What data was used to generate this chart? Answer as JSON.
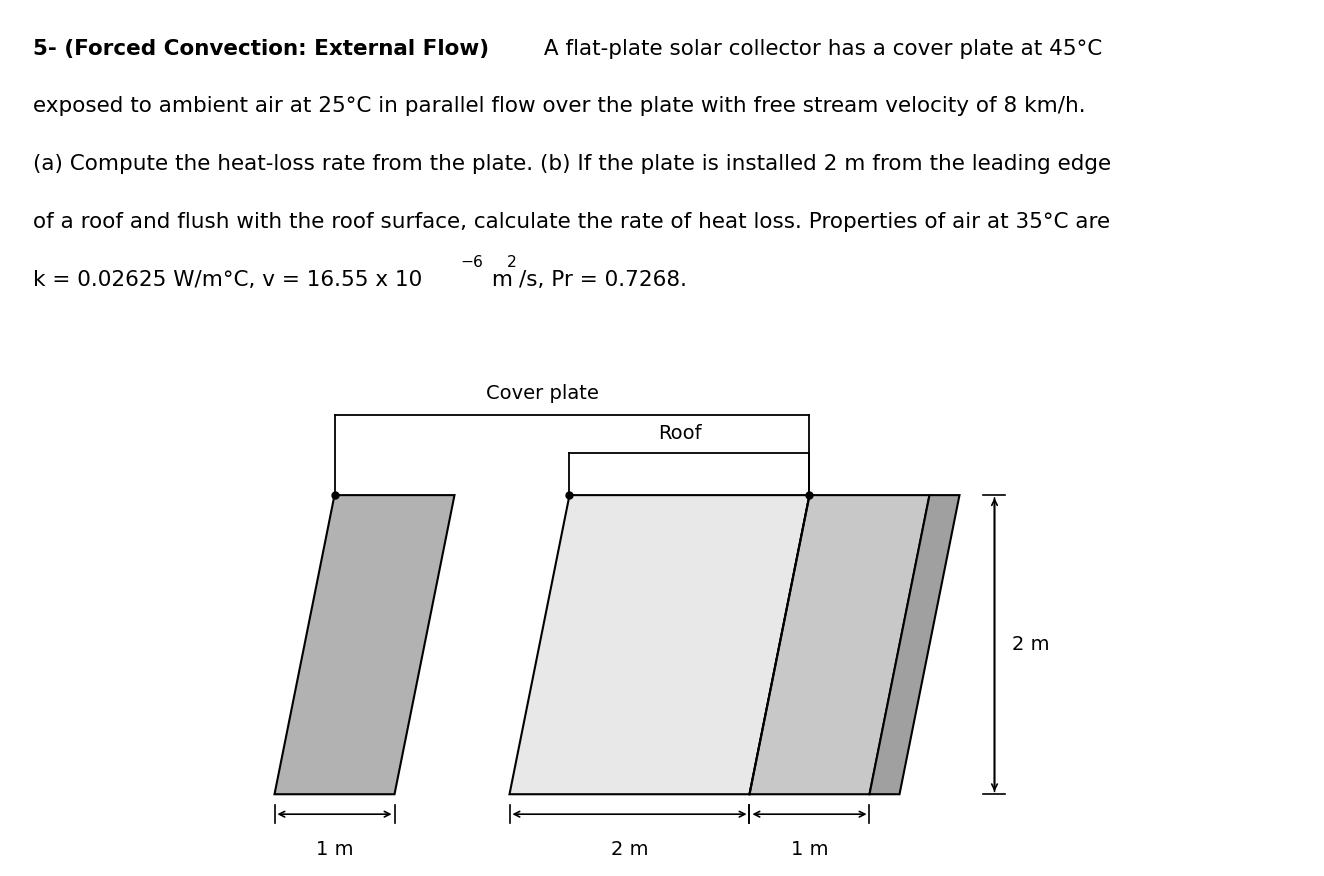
{
  "line1_bold": "5- (Forced Convection: External Flow)",
  "line1_normal": " A flat-plate solar collector has a cover plate at 45°C",
  "line2": "exposed to ambient air at 25°C in parallel flow over the plate with free stream velocity of 8 km/h.",
  "line3": "(a) Compute the heat-loss rate from the plate. (b) If the plate is installed 2 m from the leading edge",
  "line4": "of a roof and flush with the roof surface, calculate the rate of heat loss. Properties of air at 35°C are",
  "line5_main": "k = 0.02625 W/m°C, v = 16.55 x 10",
  "line5_exp": "−6",
  "line5_m": " m",
  "line5_sup2": "2",
  "line5_end": "/s, Pr = 0.7268.",
  "label_cover_plate": "Cover plate",
  "label_roof": "Roof",
  "label_2m_vert": "2 m",
  "color_plate1": "#b2b2b2",
  "color_plate2": "#e8e8e8",
  "color_plate3": "#c8c8c8",
  "color_plate4": "#a0a0a0",
  "color_outline": "#000000",
  "bg_color": "#ffffff",
  "text_fontsize": 15.5,
  "diagram_fontsize": 14
}
